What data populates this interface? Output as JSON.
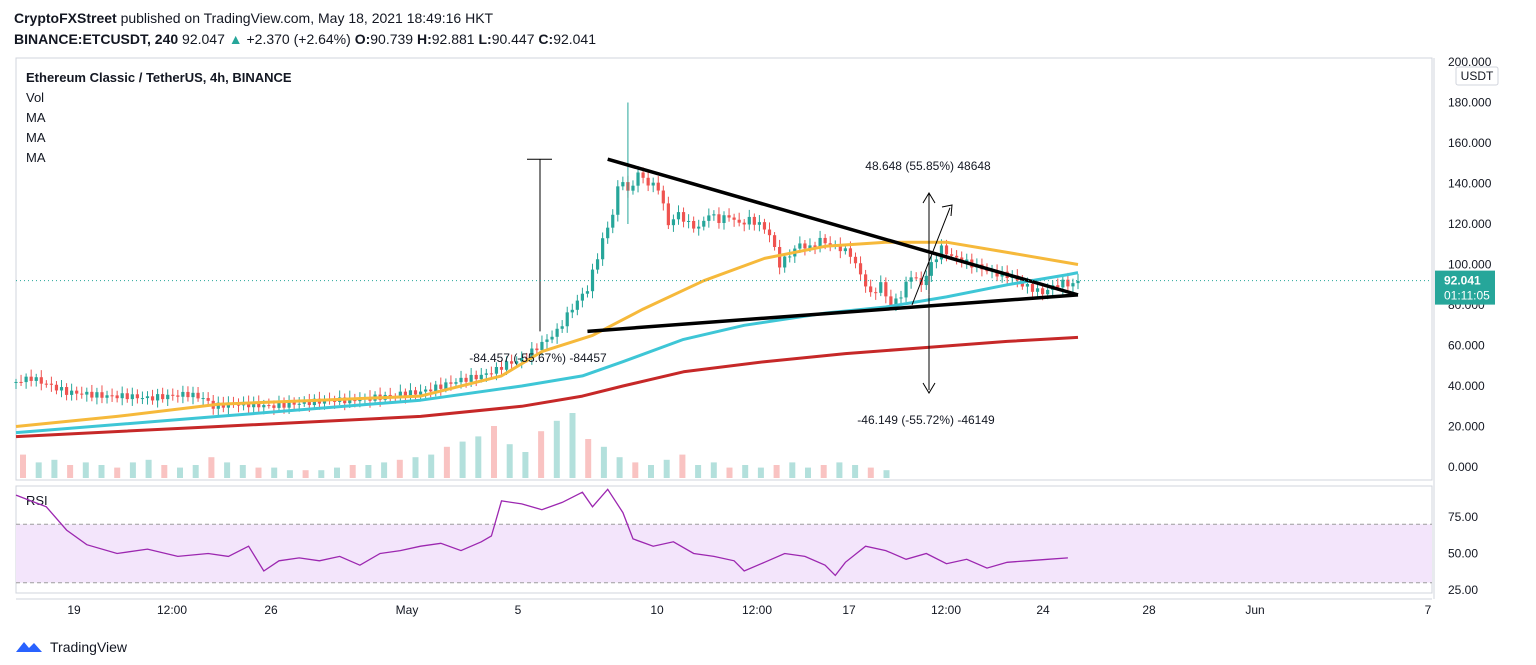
{
  "header": {
    "author": "CryptoFXStreet",
    "published": "published on TradingView.com, May 18, 2021 18:49:16 HKT",
    "symbol": "BINANCE:ETCUSDT, 240",
    "last": "92.047",
    "arrow": "▲",
    "change": "+2.370 (+2.64%)",
    "o_label": "O:",
    "o": "90.739",
    "h_label": "H:",
    "h": "92.881",
    "l_label": "L:",
    "l": "90.447",
    "c_label": "C:",
    "c": "92.041"
  },
  "legend": {
    "title": "Ethereum Classic / TetherUS, 4h, BINANCE",
    "items": [
      "Vol",
      "MA",
      "MA",
      "MA"
    ]
  },
  "colors": {
    "up": "#26a69a",
    "down": "#ef5350",
    "ma50": "#f6b93b",
    "ma100": "#3ec6d6",
    "ma200": "#c62828",
    "rsi": "#9c27b0",
    "rsi_band": "#f3e5fb",
    "price_tag": "#26a69a"
  },
  "chart_data": [
    {
      "type": "candlestick",
      "title": "Ethereum Classic / TetherUS, 4h, BINANCE",
      "price_unit": "USDT",
      "y_ticks": [
        "200.000",
        "180.000",
        "160.000",
        "140.000",
        "120.000",
        "100.000",
        "80.000",
        "60.000",
        "40.000",
        "20.000",
        "0.000"
      ],
      "ylim": [
        0,
        200
      ],
      "x_ticks": [
        "19",
        "12:00",
        "26",
        "May",
        "5",
        "10",
        "12:00",
        "17",
        "12:00",
        "24",
        "28",
        "Jun",
        "7"
      ],
      "last_price": "92.041",
      "countdown": "01:11:05",
      "price_path": [
        [
          0,
          42
        ],
        [
          1.5,
          44
        ],
        [
          3,
          41
        ],
        [
          5,
          37
        ],
        [
          7,
          36
        ],
        [
          9,
          35
        ],
        [
          11,
          35
        ],
        [
          13,
          34
        ],
        [
          15,
          35
        ],
        [
          17,
          36
        ],
        [
          18.5,
          34
        ],
        [
          19.5,
          30
        ],
        [
          21,
          31
        ],
        [
          23,
          31
        ],
        [
          25,
          30
        ],
        [
          27,
          31
        ],
        [
          29,
          32
        ],
        [
          31,
          33
        ],
        [
          33,
          33
        ],
        [
          35,
          34
        ],
        [
          37,
          35
        ],
        [
          38,
          36
        ],
        [
          40,
          37
        ],
        [
          42,
          40
        ],
        [
          44,
          43
        ],
        [
          46,
          45
        ],
        [
          47.5,
          48
        ],
        [
          48.5,
          51
        ],
        [
          50,
          53
        ],
        [
          51,
          57
        ],
        [
          52.5,
          63
        ],
        [
          53.5,
          67
        ],
        [
          54.5,
          75
        ],
        [
          55.5,
          82
        ],
        [
          56.5,
          88
        ],
        [
          57,
          96
        ],
        [
          58,
          112
        ],
        [
          59,
          125
        ],
        [
          59.8,
          145
        ],
        [
          60.5,
          135
        ],
        [
          61.5,
          145
        ],
        [
          62.5,
          140
        ],
        [
          63.5,
          138
        ],
        [
          64.5,
          120
        ],
        [
          65.5,
          125
        ],
        [
          66.5,
          120
        ],
        [
          67.5,
          118
        ],
        [
          68.5,
          125
        ],
        [
          69.5,
          122
        ],
        [
          70.5,
          124
        ],
        [
          71.5,
          120
        ],
        [
          72.5,
          122
        ],
        [
          73.5,
          120
        ],
        [
          74.5,
          115
        ],
        [
          75.5,
          100
        ],
        [
          76.5,
          105
        ],
        [
          77.5,
          110
        ],
        [
          78.5,
          108
        ],
        [
          79.5,
          112
        ],
        [
          80.5,
          110
        ],
        [
          81.5,
          108
        ],
        [
          82.5,
          105
        ],
        [
          83.5,
          95
        ],
        [
          84.5,
          85
        ],
        [
          85.5,
          90
        ],
        [
          86.5,
          80
        ],
        [
          87.5,
          85
        ],
        [
          88.5,
          95
        ],
        [
          89.5,
          90
        ],
        [
          90.5,
          100
        ],
        [
          91.5,
          108
        ],
        [
          92.5,
          104
        ],
        [
          93.5,
          102
        ],
        [
          94.5,
          100
        ],
        [
          95.5,
          98
        ],
        [
          96.5,
          96
        ],
        [
          97.5,
          95
        ],
        [
          98.5,
          94
        ],
        [
          99.5,
          90
        ],
        [
          100.5,
          88
        ],
        [
          101.5,
          86
        ],
        [
          102.5,
          89
        ],
        [
          103.5,
          91
        ],
        [
          104.5,
          90
        ],
        [
          105,
          92
        ]
      ],
      "ma50_path": [
        [
          0,
          20
        ],
        [
          10,
          25
        ],
        [
          20,
          31
        ],
        [
          30,
          33
        ],
        [
          40,
          35
        ],
        [
          48,
          45
        ],
        [
          52,
          57
        ],
        [
          57,
          65
        ],
        [
          62,
          78
        ],
        [
          68,
          92
        ],
        [
          74,
          103
        ],
        [
          80,
          109
        ],
        [
          86,
          111
        ],
        [
          92,
          111
        ],
        [
          98,
          106
        ],
        [
          105,
          100
        ]
      ],
      "ma100_path": [
        [
          0,
          17
        ],
        [
          20,
          25
        ],
        [
          40,
          33
        ],
        [
          50,
          40
        ],
        [
          56,
          45
        ],
        [
          60,
          52
        ],
        [
          66,
          63
        ],
        [
          72,
          70
        ],
        [
          80,
          76
        ],
        [
          86,
          79
        ],
        [
          92,
          84
        ],
        [
          98,
          90
        ],
        [
          104,
          95
        ],
        [
          105,
          96
        ]
      ],
      "ma200_path": [
        [
          0,
          15
        ],
        [
          20,
          20
        ],
        [
          40,
          25
        ],
        [
          50,
          30
        ],
        [
          56,
          35
        ],
        [
          60,
          40
        ],
        [
          66,
          47
        ],
        [
          74,
          52
        ],
        [
          82,
          56
        ],
        [
          90,
          59
        ],
        [
          98,
          62
        ],
        [
          105,
          64
        ]
      ],
      "volume": [
        9,
        6,
        7,
        5,
        6,
        5,
        4,
        6,
        7,
        5,
        4,
        5,
        8,
        6,
        5,
        4,
        4,
        3,
        3,
        3,
        4,
        5,
        5,
        6,
        7,
        8,
        9,
        12,
        14,
        16,
        20,
        13,
        10,
        18,
        22,
        25,
        15,
        12,
        8,
        6,
        5,
        7,
        9,
        5,
        6,
        4,
        5,
        4,
        5,
        6,
        4,
        5,
        6,
        5,
        4,
        3
      ],
      "annotations": {
        "upper_trendline": [
          [
            58.5,
            152
          ],
          [
            105,
            85
          ]
        ],
        "lower_trendline": [
          [
            56.5,
            67
          ],
          [
            105,
            85
          ]
        ],
        "measure_up": "48.648 (55.85%) 48648",
        "measure_down_left": "-84.457 (-55.67%) -84457",
        "measure_down": "-46.149 (-55.72%) -46149"
      }
    },
    {
      "type": "line",
      "title": "RSI",
      "y_ticks": [
        "75.00",
        "50.00",
        "25.00"
      ],
      "ylim": [
        25,
        95
      ],
      "band": [
        30,
        70
      ],
      "values": [
        [
          0,
          90
        ],
        [
          3,
          82
        ],
        [
          5,
          66
        ],
        [
          7,
          56
        ],
        [
          10,
          50
        ],
        [
          13,
          53
        ],
        [
          16,
          48
        ],
        [
          19,
          50
        ],
        [
          21,
          48
        ],
        [
          23,
          55
        ],
        [
          24.5,
          38
        ],
        [
          26,
          45
        ],
        [
          28,
          47
        ],
        [
          30,
          45
        ],
        [
          32,
          48
        ],
        [
          34,
          42
        ],
        [
          36,
          50
        ],
        [
          38,
          52
        ],
        [
          40,
          55
        ],
        [
          42,
          57
        ],
        [
          44,
          52
        ],
        [
          46,
          58
        ],
        [
          47,
          62
        ],
        [
          48,
          86
        ],
        [
          50,
          84
        ],
        [
          52,
          80
        ],
        [
          54,
          85
        ],
        [
          56,
          92
        ],
        [
          57,
          82
        ],
        [
          58.5,
          94
        ],
        [
          60,
          78
        ],
        [
          61,
          60
        ],
        [
          63,
          55
        ],
        [
          65,
          58
        ],
        [
          67,
          50
        ],
        [
          69,
          48
        ],
        [
          71,
          45
        ],
        [
          72,
          38
        ],
        [
          74,
          44
        ],
        [
          76,
          50
        ],
        [
          78,
          48
        ],
        [
          80,
          42
        ],
        [
          81,
          35
        ],
        [
          82,
          44
        ],
        [
          84,
          55
        ],
        [
          86,
          52
        ],
        [
          88,
          46
        ],
        [
          90,
          50
        ],
        [
          92,
          43
        ],
        [
          94,
          46
        ],
        [
          96,
          40
        ],
        [
          98,
          44
        ],
        [
          100,
          45
        ],
        [
          102,
          46
        ],
        [
          104,
          47
        ]
      ]
    }
  ],
  "footer": {
    "brand": "TradingView"
  }
}
